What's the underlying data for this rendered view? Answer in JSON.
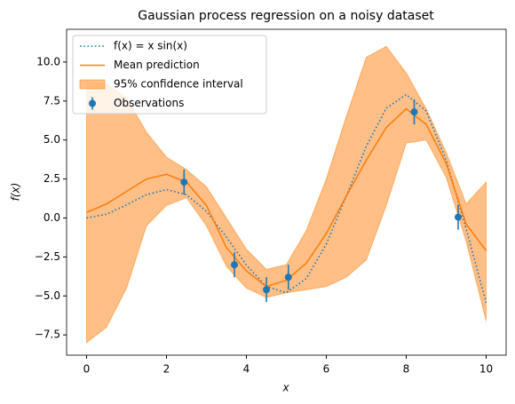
{
  "chart_data": {
    "type": "line",
    "title": "Gaussian process regression on a noisy dataset",
    "xlabel": "x",
    "ylabel": "f(x)",
    "x": [
      0,
      0.5,
      1,
      1.5,
      2,
      2.5,
      3,
      3.5,
      4,
      4.5,
      5,
      5.5,
      6,
      6.5,
      7,
      7.5,
      8,
      8.5,
      9,
      9.5,
      10
    ],
    "xlim": [
      -0.5,
      10.5
    ],
    "ylim": [
      -8.8,
      12.1
    ],
    "xticks": [
      0,
      2,
      4,
      6,
      8,
      10
    ],
    "yticks": [
      {
        "value": -7.5,
        "label": "−7.5"
      },
      {
        "value": -5,
        "label": "−5.0"
      },
      {
        "value": -2.5,
        "label": "−2.5"
      },
      {
        "value": 0,
        "label": "0.0"
      },
      {
        "value": 2.5,
        "label": "2.5"
      },
      {
        "value": 5,
        "label": "5.0"
      },
      {
        "value": 7.5,
        "label": "7.5"
      },
      {
        "value": 10,
        "label": "10.0"
      }
    ],
    "legend": "upper left",
    "band": {
      "name": "95% confidence interval",
      "color": "#ff7f0e",
      "upper": [
        8.7,
        8.6,
        7.7,
        5.5,
        3.9,
        3.1,
        2.0,
        0.0,
        -2.0,
        -3.3,
        -3.0,
        -0.8,
        2.5,
        6.5,
        10.3,
        11.0,
        9.3,
        7.0,
        4.2,
        0.9,
        2.3
      ],
      "lower": [
        -8.0,
        -7.0,
        -4.5,
        -0.5,
        0.8,
        1.3,
        -0.5,
        -3.1,
        -4.5,
        -5.1,
        -4.8,
        -4.6,
        -4.4,
        -3.8,
        -2.7,
        0.8,
        4.8,
        5.0,
        2.6,
        -1.5,
        -6.6
      ]
    },
    "series": [
      {
        "name": "f(x) = x sin(x)",
        "color": "#1f77b4",
        "style": "dotted",
        "values": [
          0,
          0.24,
          0.841,
          1.496,
          1.819,
          1.496,
          0.423,
          -1.228,
          -3.027,
          -4.399,
          -4.795,
          -3.88,
          -1.676,
          1.397,
          4.599,
          7.035,
          7.915,
          6.86,
          3.709,
          -0.712,
          -5.44
        ]
      },
      {
        "name": "Mean prediction",
        "color": "#ff7f0e",
        "style": "solid",
        "values": [
          0.35,
          0.9,
          1.7,
          2.5,
          2.8,
          2.3,
          0.8,
          -1.9,
          -3.4,
          -4.4,
          -4.0,
          -2.9,
          -1.0,
          1.4,
          3.7,
          5.8,
          7.0,
          6.0,
          3.5,
          -0.4,
          -2.1
        ]
      }
    ],
    "observations": {
      "name": "Observations",
      "color": "#1f77b4",
      "x": [
        2.44,
        3.7,
        4.5,
        5.05,
        8.2,
        9.3
      ],
      "values": [
        2.3,
        -3.0,
        -4.6,
        -3.8,
        6.8,
        0.05
      ],
      "errors": [
        0.8,
        0.8,
        0.8,
        0.8,
        0.8,
        0.8
      ]
    }
  }
}
